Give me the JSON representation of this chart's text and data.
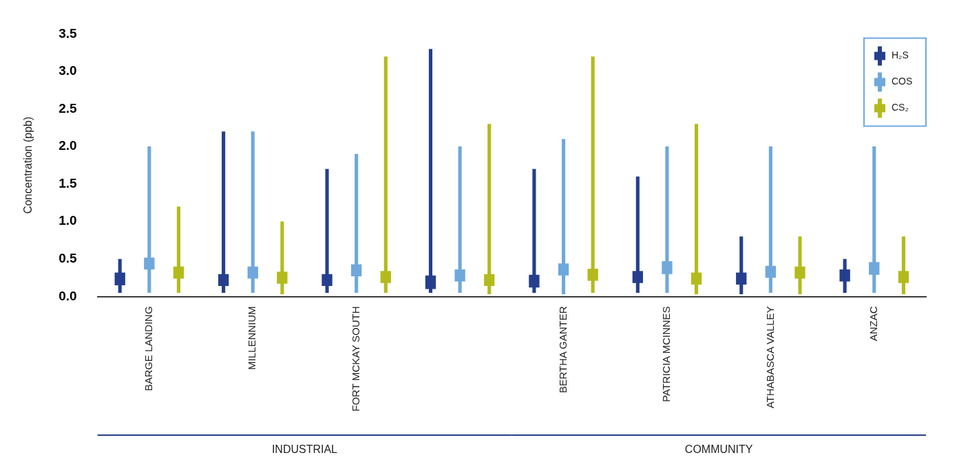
{
  "chart_data": {
    "type": "bar",
    "ylabel": "Concentration (ppb)",
    "categories": [
      "BARGE LANDING",
      "MILLENNIUM",
      "FORT MCKAY SOUTH",
      null,
      "BERTHA GANTER",
      "PATRICIA MCINNES",
      "ATHABASCA VALLEY",
      "ANZAC"
    ],
    "series": [
      {
        "name": "H₂S",
        "color": "#253f8e",
        "base": [
          0.05,
          0.05,
          0.05,
          0.05,
          0.05,
          0.05,
          0.03,
          0.05
        ],
        "values": [
          0.45,
          2.15,
          1.65,
          3.25,
          1.65,
          1.55,
          0.77,
          0.45
        ]
      },
      {
        "color": "#253f8e",
        "base": [
          0.15,
          0.14,
          0.14,
          0.1,
          0.12,
          0.18,
          0.16,
          0.2
        ],
        "values": [
          0.17,
          0.16,
          0.16,
          0.18,
          0.17,
          0.16,
          0.16,
          0.16
        ]
      },
      {
        "name": "COS",
        "color": "#6fa8dc",
        "base": [
          0.05,
          0.05,
          0.05,
          0.05,
          0.03,
          0.05,
          0.05,
          0.05
        ],
        "values": [
          1.95,
          2.15,
          1.85,
          1.95,
          2.07,
          1.95,
          1.95,
          1.95
        ]
      },
      {
        "color": "#6fa8dc",
        "base": [
          0.36,
          0.24,
          0.27,
          0.2,
          0.28,
          0.3,
          0.25,
          0.29
        ],
        "values": [
          0.16,
          0.16,
          0.16,
          0.16,
          0.16,
          0.17,
          0.16,
          0.17
        ]
      },
      {
        "name": "CS₂",
        "color": "#b3bb1c",
        "base": [
          0.05,
          0.03,
          0.05,
          0.03,
          0.05,
          0.03,
          0.03,
          0.03
        ],
        "values": [
          1.15,
          0.97,
          3.15,
          2.27,
          3.15,
          2.27,
          0.77,
          0.77
        ]
      },
      {
        "color": "#b3bb1c",
        "base": [
          0.24,
          0.17,
          0.18,
          0.14,
          0.21,
          0.16,
          0.24,
          0.18
        ],
        "values": [
          0.16,
          0.16,
          0.16,
          0.16,
          0.16,
          0.16,
          0.16,
          0.16
        ]
      }
    ],
    "ylim": [
      0,
      3.5
    ],
    "yticks": [
      {
        "value": 0,
        "label": "0.0"
      },
      {
        "value": 0.5,
        "label": "0.5"
      },
      {
        "value": 1,
        "label": "1.0"
      },
      {
        "value": 1.5,
        "label": "1.5"
      },
      {
        "value": 2,
        "label": "2.0"
      },
      {
        "value": 2.5,
        "label": "2.5"
      },
      {
        "value": 3,
        "label": "3.0"
      },
      {
        "value": 3.5,
        "label": "3.5"
      }
    ],
    "grid": false,
    "legend": "top right",
    "annotations": [
      "INDUSTRIAL",
      "COMMUNITY"
    ]
  }
}
